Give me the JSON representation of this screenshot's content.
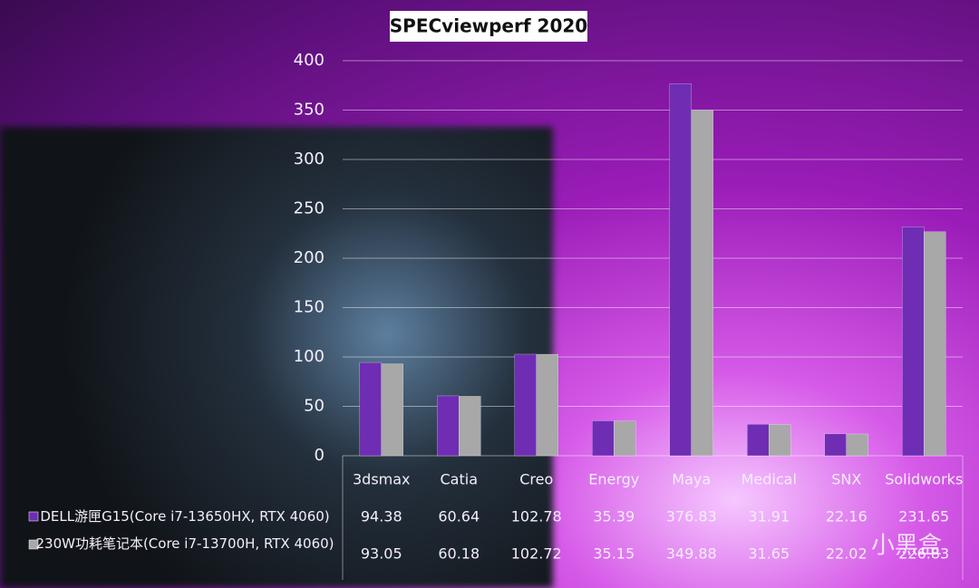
{
  "chart_data": {
    "type": "bar",
    "title": "SPECviewperf 2020",
    "categories": [
      "3dsmax",
      "Catia",
      "Creo",
      "Energy",
      "Maya",
      "Medical",
      "SNX",
      "Solidworks"
    ],
    "series": [
      {
        "name": "DELL游匣G15(Core i7-13650HX, RTX 4060)",
        "color": "#6f2db3",
        "values": [
          94.38,
          60.64,
          102.78,
          35.39,
          376.83,
          31.91,
          22.16,
          231.65
        ]
      },
      {
        "name": "230W功耗笔记本(Core i7-13700H, RTX 4060)",
        "color": "#a8a8a8",
        "values": [
          93.05,
          60.18,
          102.72,
          35.15,
          349.88,
          31.65,
          22.02,
          226.83
        ]
      }
    ],
    "ylim": [
      0,
      400
    ],
    "yticks": [
      0,
      50,
      100,
      150,
      200,
      250,
      300,
      350,
      400
    ],
    "grid": true,
    "watermark": "小黑盒"
  }
}
